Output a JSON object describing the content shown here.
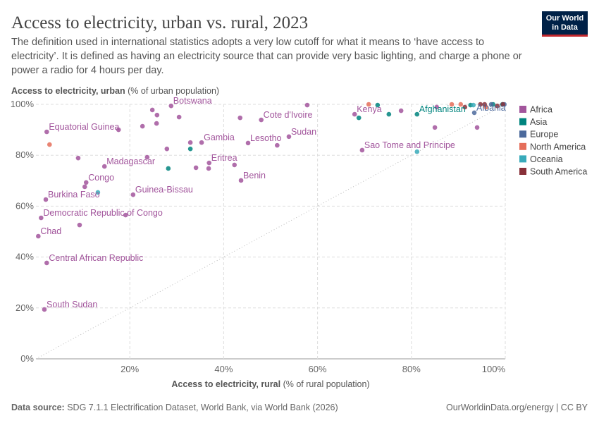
{
  "logo": [
    "Our World",
    "in Data"
  ],
  "chart_data": {
    "type": "scatter",
    "title": "Access to electricity, urban vs. rural, 2023",
    "subtitle": "The definition used in international statistics adopts a very low cutoff for what it means to ‘have access to electricity’. It is defined as having an electricity source that can provide very basic lighting, and charge a phone or power a radio for 4 hours per day.",
    "y_label": "Access to electricity, urban",
    "y_label_unit": "(% of urban population)",
    "x_label": "Access to electricity, rural",
    "x_label_unit": "(% of rural population)",
    "xlim": [
      0,
      100
    ],
    "ylim": [
      0,
      100
    ],
    "xticks": [
      {
        "value": 20,
        "label": "20%"
      },
      {
        "value": 40,
        "label": "40%"
      },
      {
        "value": 60,
        "label": "60%"
      },
      {
        "value": 80,
        "label": "80%"
      },
      {
        "value": 100,
        "label": "100%"
      }
    ],
    "yticks": [
      {
        "value": 0,
        "label": "0%"
      },
      {
        "value": 20,
        "label": "20%"
      },
      {
        "value": 40,
        "label": "40%"
      },
      {
        "value": 60,
        "label": "60%"
      },
      {
        "value": 80,
        "label": "80%"
      },
      {
        "value": 100,
        "label": "100%"
      }
    ],
    "grid": true,
    "legend": "right",
    "series": [
      {
        "name": "Africa",
        "color": "#a2559c",
        "x": [
          1.8,
          0.5,
          2.3,
          1.1,
          2.1,
          10.7,
          10.4,
          14.6,
          20.7,
          2.3,
          17.6,
          9.0,
          9.3,
          19.1,
          28.8,
          24.8,
          25.8,
          22.7,
          25.7,
          23.7,
          27.9,
          35.3,
          32.9,
          30.5,
          36.9,
          36.8,
          34.1,
          43.7,
          42.3,
          45.2,
          48.0,
          43.5,
          51.4,
          57.8,
          53.9,
          67.9,
          69.5,
          77.8,
          85.0,
          94.0,
          85.4
        ],
        "values": [
          19.4,
          48.2,
          37.7,
          55.4,
          62.6,
          69.3,
          67.6,
          75.6,
          64.5,
          89.2,
          90.0,
          78.9,
          52.6,
          56.5,
          99.4,
          97.8,
          95.8,
          91.4,
          92.5,
          79.2,
          82.5,
          85.0,
          85.0,
          95.0,
          77.0,
          74.8,
          75.1,
          70.1,
          76.2,
          84.8,
          93.9,
          94.7,
          83.9,
          99.7,
          87.3,
          96.1,
          82.0,
          97.5,
          90.9,
          90.9,
          98.9
        ],
        "labels": [
          "South Sudan",
          "Chad",
          "Central African Republic",
          "Democratic Republic of Congo",
          "Burkina Faso",
          "Congo",
          null,
          "Madagascar",
          "Guinea-Bissau",
          "Equatorial Guinea",
          null,
          null,
          null,
          null,
          "Botswana",
          null,
          null,
          null,
          null,
          null,
          null,
          "Gambia",
          null,
          null,
          "Eritrea",
          null,
          null,
          "Benin",
          null,
          "Lesotho",
          "Cote d'Ivoire",
          null,
          null,
          null,
          "Sudan",
          "Kenya",
          "Sao Tome and Principe",
          null,
          null,
          null,
          null
        ]
      },
      {
        "name": "Asia",
        "color": "#00847e",
        "x": [
          28.2,
          32.9,
          68.8,
          72.8,
          75.2,
          81.2,
          92.6,
          97.4,
          99.4
        ],
        "values": [
          74.8,
          82.5,
          94.7,
          99.7,
          96.1,
          96.1,
          99.7,
          100,
          100
        ],
        "labels": [
          null,
          null,
          null,
          null,
          null,
          "Afghanistan",
          null,
          null,
          null
        ]
      },
      {
        "name": "Europe",
        "color": "#4c6a9c",
        "x": [
          93.4,
          97.0,
          99.8
        ],
        "values": [
          96.7,
          100,
          100
        ],
        "labels": [
          "Albania",
          null,
          null
        ]
      },
      {
        "name": "North America",
        "color": "#e56e5a",
        "x": [
          2.9,
          70.9,
          88.6,
          90.5,
          95.9
        ],
        "values": [
          84.2,
          100,
          100,
          100,
          98.9
        ],
        "labels": [
          null,
          null,
          null,
          null,
          null
        ]
      },
      {
        "name": "Oceania",
        "color": "#38aaba",
        "x": [
          13.2,
          81.2,
          93.2
        ],
        "values": [
          65.4,
          81.4,
          99.7
        ],
        "labels": [
          null,
          null,
          null
        ]
      },
      {
        "name": "South America",
        "color": "#883039",
        "x": [
          91.4,
          94.7,
          95.6,
          98.3,
          99.5
        ],
        "values": [
          98.9,
          100,
          100,
          99.4,
          100
        ],
        "labels": [
          null,
          null,
          null,
          null,
          null
        ]
      }
    ],
    "source_label": "Data source:",
    "source": "SDG 7.1.1 Electrification Dataset, World Bank, via World Bank (2026)",
    "credit": "OurWorldinData.org/energy | CC BY"
  }
}
